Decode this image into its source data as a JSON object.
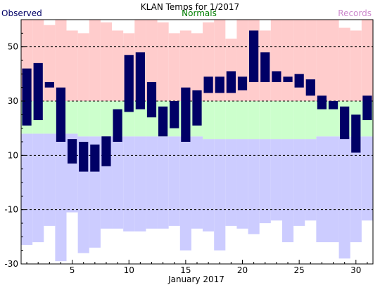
{
  "chart_data": {
    "type": "bar",
    "title": "KLAN Temps for 1/2017",
    "xlabel": "January 2017",
    "ylabel": "",
    "xlim": [
      0.5,
      31.5
    ],
    "ylim": [
      -30,
      60
    ],
    "yticks": [
      -30,
      -10,
      10,
      30,
      50
    ],
    "xticks": [
      5,
      10,
      15,
      20,
      25,
      30
    ],
    "grid": "dashed horizontal at -10, 10, 30, 50",
    "legend": "top, inline labels",
    "x": [
      1,
      2,
      3,
      4,
      5,
      6,
      7,
      8,
      9,
      10,
      11,
      12,
      13,
      14,
      15,
      16,
      17,
      18,
      19,
      20,
      21,
      22,
      23,
      24,
      25,
      26,
      27,
      28,
      29,
      30,
      31
    ],
    "series": [
      {
        "name": "Observed",
        "color": "#000066",
        "high": [
          42,
          44,
          37,
          35,
          16,
          15,
          14,
          17,
          27,
          47,
          48,
          37,
          28,
          30,
          35,
          34,
          39,
          39,
          41,
          39,
          56,
          48,
          41,
          39,
          40,
          38,
          32,
          30,
          28,
          25,
          32
        ],
        "low": [
          21,
          23,
          35,
          15,
          7,
          4,
          4,
          6,
          15,
          26,
          27,
          24,
          17,
          20,
          15,
          21,
          33,
          33,
          33,
          34,
          37,
          37,
          37,
          37,
          35,
          32,
          27,
          27,
          16,
          11,
          23
        ]
      },
      {
        "name": "Normals",
        "color": "#008000",
        "high": [
          30,
          30,
          30,
          30,
          30,
          30,
          30,
          30,
          30,
          30,
          30,
          30,
          30,
          30,
          30,
          30,
          30,
          30,
          30,
          30,
          30,
          30,
          30,
          30,
          30,
          30,
          30,
          30,
          30,
          30,
          30
        ],
        "low": [
          18,
          18,
          18,
          18,
          18,
          17,
          17,
          17,
          17,
          17,
          17,
          17,
          17,
          17,
          17,
          17,
          16,
          16,
          16,
          16,
          16,
          16,
          16,
          16,
          16,
          16,
          17,
          17,
          17,
          17,
          17
        ]
      },
      {
        "name": "Records",
        "color": "#cc88cc",
        "high": [
          65,
          62,
          58,
          61,
          56,
          55,
          62,
          59,
          56,
          55,
          63,
          62,
          59,
          55,
          56,
          55,
          59,
          60,
          53,
          62,
          60,
          56,
          60,
          66,
          65,
          63,
          61,
          60,
          57,
          56,
          61
        ],
        "low": [
          -23,
          -22,
          -16,
          -29,
          -11,
          -26,
          -24,
          -17,
          -17,
          -18,
          -18,
          -17,
          -17,
          -16,
          -25,
          -17,
          -18,
          -25,
          -16,
          -17,
          -19,
          -15,
          -14,
          -22,
          -16,
          -14,
          -22,
          -22,
          -28,
          -22,
          -14
        ]
      }
    ],
    "colors": {
      "record_range": "#ffcccc",
      "normal_range": "#ccffcc",
      "cold_range": "#ccccff",
      "observed": "#000066",
      "grid": "#000000"
    }
  }
}
